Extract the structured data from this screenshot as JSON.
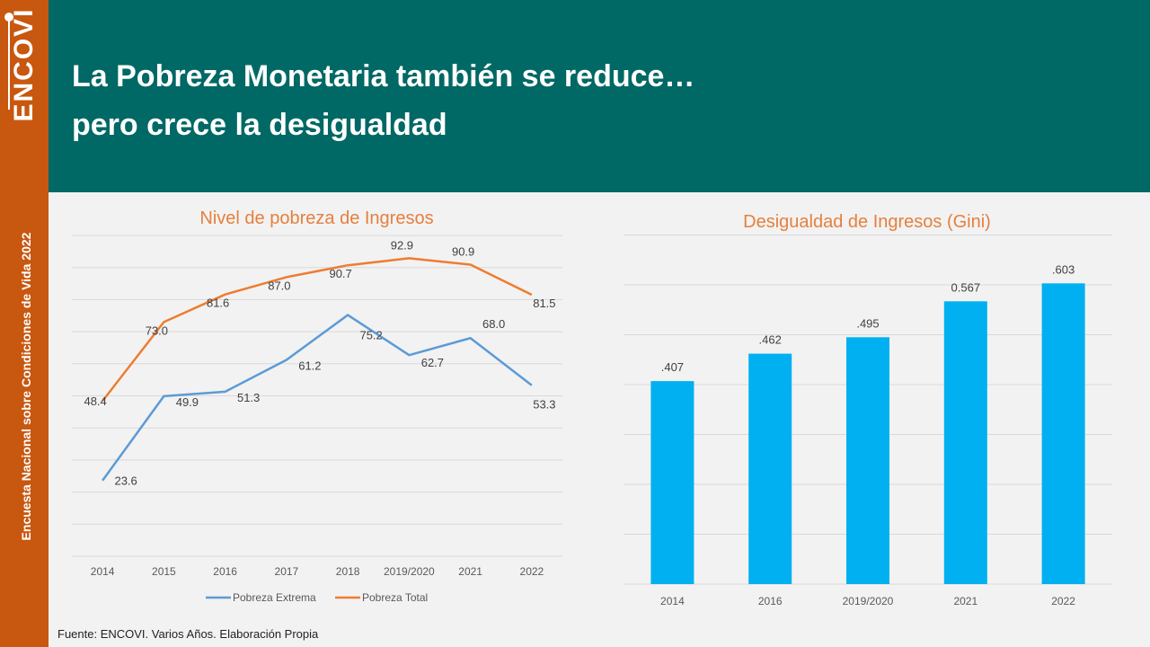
{
  "brand": {
    "logo_text": "ENCOVI"
  },
  "sidebar": {
    "vertical_text": "Encuesta Nacional sobre Condiciones de Vida 2022"
  },
  "header": {
    "title": "La Pobreza Monetaria también se reduce… pero crece la desigualdad"
  },
  "colors": {
    "header_bg": "#006865",
    "sidebar_bg": "#c8570f",
    "chart_title": "#e5803e",
    "series_extrema": "#5b9bd5",
    "series_total": "#ed7d31",
    "bars": "#00b0f0"
  },
  "chart_data": [
    {
      "type": "line",
      "title": "Nivel de pobreza de Ingresos",
      "categories": [
        "2014",
        "2015",
        "2016",
        "2017",
        "2018",
        "2019/2020",
        "2021",
        "2022"
      ],
      "series": [
        {
          "name": "Pobreza Extrema",
          "values": [
            23.6,
            49.9,
            51.3,
            61.2,
            75.2,
            62.7,
            68.0,
            53.3
          ],
          "labels": [
            "23.6",
            "49.9",
            "51.3",
            "61.2",
            "75.2",
            "62.7",
            "68.0",
            "53.3"
          ]
        },
        {
          "name": "Pobreza Total",
          "values": [
            48.4,
            73.0,
            81.6,
            87.0,
            90.7,
            92.9,
            90.9,
            81.5
          ],
          "labels": [
            "48.4",
            "73.0",
            "81.6",
            "87.0",
            "90.7",
            "92.9",
            "90.9",
            "81.5"
          ]
        }
      ],
      "ylim": [
        0,
        100
      ],
      "grid": true,
      "legend": "bottom"
    },
    {
      "type": "bar",
      "title": "Desigualdad de Ingresos (Gini)",
      "categories": [
        "2014",
        "2016",
        "2019/2020",
        "2021",
        "2022"
      ],
      "values": [
        0.407,
        0.462,
        0.495,
        0.567,
        0.603
      ],
      "labels": [
        ".407",
        ".462",
        ".495",
        "0.567",
        ".603"
      ],
      "ylim": [
        0,
        0.6
      ],
      "grid": true
    }
  ],
  "footer": {
    "source": "Fuente: ENCOVI. Varios Años. Elaboración Propia"
  }
}
